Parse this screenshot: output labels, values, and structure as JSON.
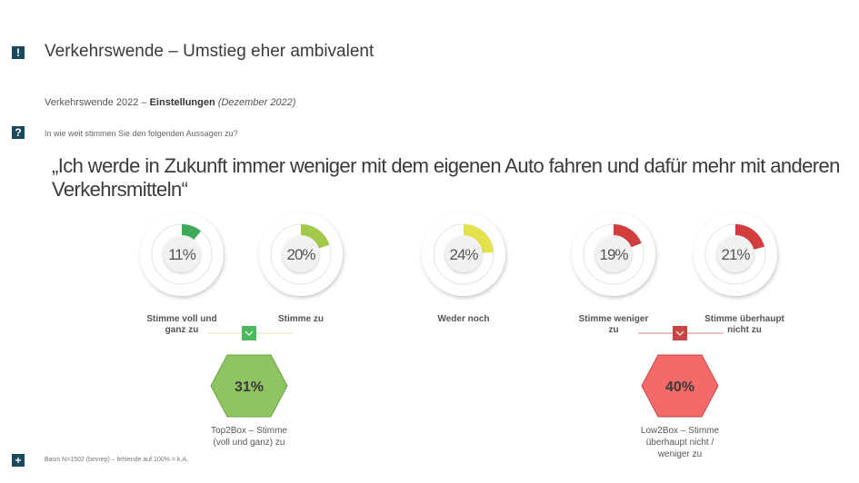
{
  "header": {
    "title_icon": "exclamation-icon",
    "title": "Verkehrswende – Umstieg eher ambivalent",
    "subtitle_prefix": "Verkehrswende 2022 – ",
    "subtitle_bold": "Einstellungen",
    "subtitle_italic": "(Dezember 2022)",
    "question_icon": "question-icon",
    "question": "In wie weit stimmen Sie den folgenden Aussagen zu?",
    "statement": "„Ich werde in Zukunft immer weniger mit dem eigenen Auto fahren und dafür mehr mit anderen Verkehrsmitteln“"
  },
  "footer": {
    "icon": "plus-icon",
    "note": "Basis N=1502 (bevrep) – fehlende auf 100% = k.A."
  },
  "chart_data": {
    "type": "pie",
    "title": "„Ich werde in Zukunft immer weniger mit dem eigenen Auto fahren und dafür mehr mit anderen Verkehrsmitteln“",
    "categories": [
      "Stimme voll und ganz zu",
      "Stimme zu",
      "Weder noch",
      "Stimme weniger zu",
      "Stimme überhaupt nicht zu"
    ],
    "values": [
      11,
      20,
      24,
      19,
      21
    ],
    "labels": [
      "11%",
      "20%",
      "24%",
      "19%",
      "21%"
    ],
    "colors": [
      "#3daa5c",
      "#a3c94a",
      "#e2e24a",
      "#d23e3e",
      "#d23e3e"
    ],
    "unit": "%",
    "summary": [
      {
        "name": "Top2Box – Stimme (voll und ganz) zu",
        "value": 31,
        "label": "31%",
        "color": "#8fc460",
        "border": "#6aa345"
      },
      {
        "name": "Low2Box – Stimme überhaupt nicht / weniger zu",
        "value": 40,
        "label": "40%",
        "color": "#f26a6a",
        "border": "#c94444"
      }
    ],
    "group_colors": {
      "top": "#4cb85c",
      "low": "#c94444",
      "top_line": "#e8e2a0",
      "low_line": "#d9808a"
    }
  }
}
